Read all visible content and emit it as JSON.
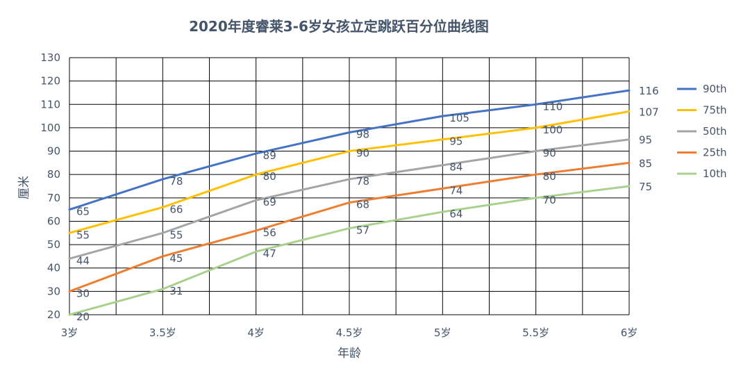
{
  "chart_data": {
    "type": "line",
    "title": "2020年度睿莱3-6岁女孩立定跳跃百分位曲线图",
    "xlabel": "年龄",
    "ylabel": "厘米",
    "categories": [
      "3岁",
      "3.5岁",
      "4岁",
      "4.5岁",
      "5岁",
      "5.5岁",
      "6岁"
    ],
    "y_ticks": [
      "20",
      "30",
      "40",
      "50",
      "60",
      "70",
      "80",
      "90",
      "100",
      "110",
      "120",
      "130"
    ],
    "ylim": [
      20,
      130
    ],
    "grid": true,
    "legend": "right",
    "series": [
      {
        "name": "90th",
        "color": "#4472c4",
        "values": [
          65,
          78,
          89,
          98,
          105,
          110,
          116
        ],
        "labels": [
          "65",
          "78",
          "89",
          "98",
          "105",
          "110",
          "116"
        ]
      },
      {
        "name": "75th",
        "color": "#ffc000",
        "values": [
          55,
          66,
          80,
          90,
          95,
          100,
          107
        ],
        "labels": [
          "55",
          "66",
          "80",
          "90",
          "95",
          "100",
          "107"
        ]
      },
      {
        "name": "50th",
        "color": "#a5a5a5",
        "values": [
          44,
          55,
          69,
          78,
          84,
          90,
          95
        ],
        "labels": [
          "44",
          "55",
          "69",
          "78",
          "84",
          "90",
          "95"
        ]
      },
      {
        "name": "25th",
        "color": "#ed7d31",
        "values": [
          30,
          45,
          56,
          68,
          74,
          80,
          85
        ],
        "labels": [
          "30",
          "45",
          "56",
          "68",
          "74",
          "80",
          "85"
        ]
      },
      {
        "name": "10th",
        "color": "#a9d18e",
        "values": [
          20,
          31,
          47,
          57,
          64,
          70,
          75
        ],
        "labels": [
          "20",
          "31",
          "47",
          "57",
          "64",
          "70",
          "75"
        ]
      }
    ]
  }
}
